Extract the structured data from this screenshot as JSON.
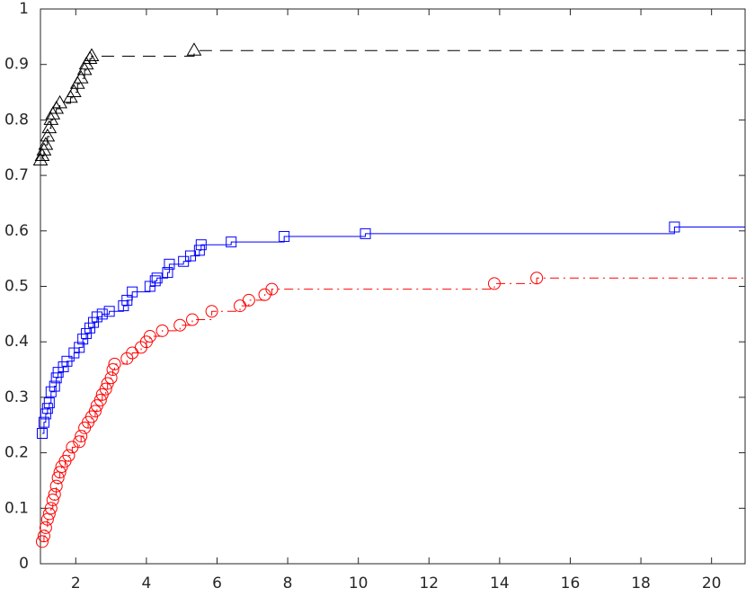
{
  "chart_data": {
    "type": "step",
    "xlim": [
      1,
      20.95
    ],
    "xticks": [
      2,
      4,
      6,
      8,
      10,
      12,
      14,
      16,
      18,
      20
    ],
    "ylim": [
      0,
      1
    ],
    "yticks": [
      0,
      0.1,
      0.2,
      0.3,
      0.4,
      0.5,
      0.6,
      0.7,
      0.8,
      0.9,
      1
    ],
    "grid": false,
    "series": [
      {
        "color": "#000000",
        "linestyle": "dashed",
        "marker": "triangle",
        "x": [
          1.0,
          1.05,
          1.1,
          1.15,
          1.2,
          1.25,
          1.3,
          1.35,
          1.45,
          1.55,
          1.85,
          1.95,
          2.05,
          2.15,
          2.25,
          2.3,
          2.4,
          2.45,
          5.35
        ],
        "values": [
          0.727,
          0.735,
          0.745,
          0.755,
          0.77,
          0.785,
          0.8,
          0.81,
          0.82,
          0.83,
          0.84,
          0.85,
          0.865,
          0.875,
          0.89,
          0.9,
          0.91,
          0.915,
          0.925
        ]
      },
      {
        "color": "#0000ff",
        "linestyle": "solid",
        "marker": "square",
        "x": [
          1.05,
          1.1,
          1.15,
          1.2,
          1.25,
          1.3,
          1.4,
          1.45,
          1.5,
          1.65,
          1.75,
          1.95,
          2.1,
          2.2,
          2.3,
          2.4,
          2.5,
          2.6,
          2.75,
          2.95,
          3.35,
          3.45,
          3.6,
          4.1,
          4.25,
          4.3,
          4.6,
          4.65,
          5.05,
          5.25,
          5.5,
          5.55,
          6.4,
          7.9,
          10.2,
          18.95
        ],
        "values": [
          0.235,
          0.255,
          0.27,
          0.28,
          0.29,
          0.31,
          0.32,
          0.335,
          0.345,
          0.355,
          0.365,
          0.38,
          0.39,
          0.405,
          0.415,
          0.425,
          0.435,
          0.445,
          0.45,
          0.455,
          0.465,
          0.475,
          0.49,
          0.5,
          0.51,
          0.515,
          0.525,
          0.54,
          0.545,
          0.555,
          0.565,
          0.575,
          0.58,
          0.59,
          0.595,
          0.607
        ]
      },
      {
        "color": "#ff0000",
        "linestyle": "dashdot",
        "marker": "circle",
        "x": [
          1.05,
          1.1,
          1.15,
          1.2,
          1.25,
          1.3,
          1.35,
          1.4,
          1.45,
          1.5,
          1.55,
          1.6,
          1.7,
          1.8,
          1.9,
          2.1,
          2.15,
          2.25,
          2.35,
          2.45,
          2.55,
          2.6,
          2.7,
          2.75,
          2.85,
          2.9,
          3.0,
          3.05,
          3.1,
          3.45,
          3.6,
          3.85,
          4.0,
          4.1,
          4.45,
          4.95,
          5.3,
          5.85,
          6.65,
          6.9,
          7.35,
          7.55,
          13.85,
          15.05
        ],
        "values": [
          0.04,
          0.05,
          0.065,
          0.08,
          0.09,
          0.1,
          0.115,
          0.125,
          0.14,
          0.155,
          0.165,
          0.175,
          0.185,
          0.195,
          0.21,
          0.22,
          0.23,
          0.245,
          0.255,
          0.265,
          0.275,
          0.285,
          0.295,
          0.305,
          0.315,
          0.325,
          0.335,
          0.35,
          0.36,
          0.37,
          0.38,
          0.39,
          0.4,
          0.41,
          0.42,
          0.43,
          0.44,
          0.455,
          0.465,
          0.475,
          0.485,
          0.495,
          0.505,
          0.515
        ]
      }
    ]
  }
}
